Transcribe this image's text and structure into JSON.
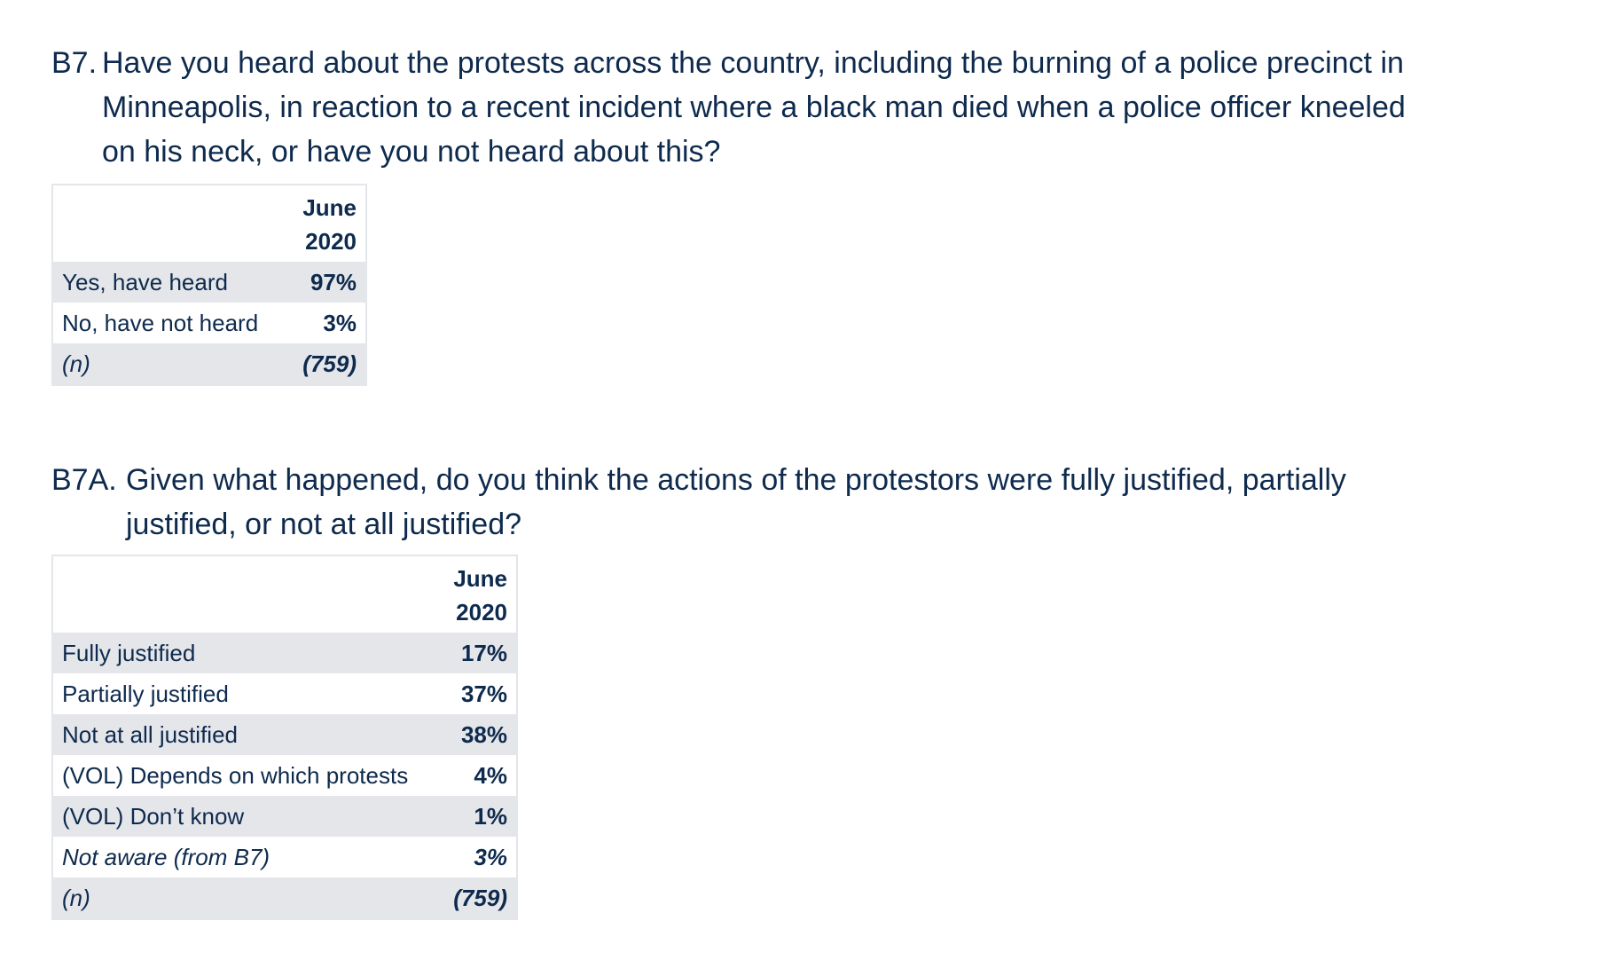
{
  "q1": {
    "id": "B7.",
    "text": "Have you heard about the protests across the country, including the burning of a police precinct in Minneapolis, in reaction to a recent incident where a black man died when a police officer kneeled on his neck, or have you not heard about this?"
  },
  "t1": {
    "header_line1": "June",
    "header_line2": "2020",
    "rows": [
      {
        "label": "Yes, have heard",
        "value": "97%"
      },
      {
        "label": "No, have not heard",
        "value": "3%"
      },
      {
        "label": "(n)",
        "value": "(759)"
      }
    ]
  },
  "q2": {
    "id": "B7A.",
    "text": "Given what happened, do you think the actions of the protestors were fully justified, partially justified, or not at all justified?"
  },
  "t2": {
    "header_line1": "June",
    "header_line2": "2020",
    "rows": [
      {
        "label": "Fully justified",
        "value": "17%"
      },
      {
        "label": "Partially justified",
        "value": "37%"
      },
      {
        "label": "Not at all justified",
        "value": "38%"
      },
      {
        "label": "(VOL) Depends on which protests",
        "value": "4%"
      },
      {
        "label": "(VOL) Don’t know",
        "value": "1%"
      },
      {
        "label": "Not aware (from B7)",
        "value": "3%"
      },
      {
        "label": "(n)",
        "value": "(759)"
      }
    ]
  },
  "colors": {
    "text": "#0e2a4d",
    "row_shade": "#e4e6ea",
    "border": "#e3e6ea"
  }
}
